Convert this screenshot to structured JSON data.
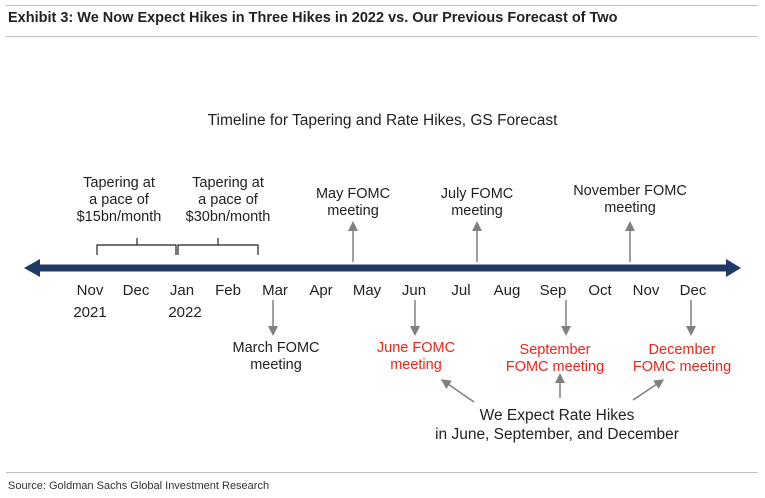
{
  "exhibit_title": "Exhibit 3: We Now Expect Hikes in Three Hikes in 2022 vs. Our Previous Forecast of Two",
  "chart_title": "Timeline for Tapering and Rate Hikes, GS Forecast",
  "timeline": {
    "months": [
      "Nov",
      "Dec",
      "Jan",
      "Feb",
      "Mar",
      "Apr",
      "May",
      "Jun",
      "Jul",
      "Aug",
      "Sep",
      "Oct",
      "Nov",
      "Dec"
    ],
    "years": [
      "2021",
      "2022"
    ]
  },
  "tapering": [
    {
      "line1": "Tapering at",
      "line2": "a pace of",
      "line3": "$15bn/month"
    },
    {
      "line1": "Tapering at",
      "line2": "a pace of",
      "line3": "$30bn/month"
    }
  ],
  "meetings_above": [
    {
      "line1": "May FOMC",
      "line2": "meeting"
    },
    {
      "line1": "July FOMC",
      "line2": "meeting"
    },
    {
      "line1": "November FOMC",
      "line2": "meeting"
    }
  ],
  "meetings_below": [
    {
      "line1": "March FOMC",
      "line2": "meeting",
      "hike": false
    },
    {
      "line1": "June FOMC",
      "line2": "meeting",
      "hike": true
    },
    {
      "line1": "September",
      "line2": "FOMC meeting",
      "hike": true
    },
    {
      "line1": "December",
      "line2": "FOMC meeting",
      "hike": true
    }
  ],
  "hike_note": {
    "line1": "We Expect Rate Hikes",
    "line2": "in June, September, and December"
  },
  "source": "Source: Goldman Sachs Global Investment Research",
  "colors": {
    "timeline": "#1f3864",
    "hike": "#e8261b",
    "arrow": "#808080",
    "text": "#222222"
  }
}
